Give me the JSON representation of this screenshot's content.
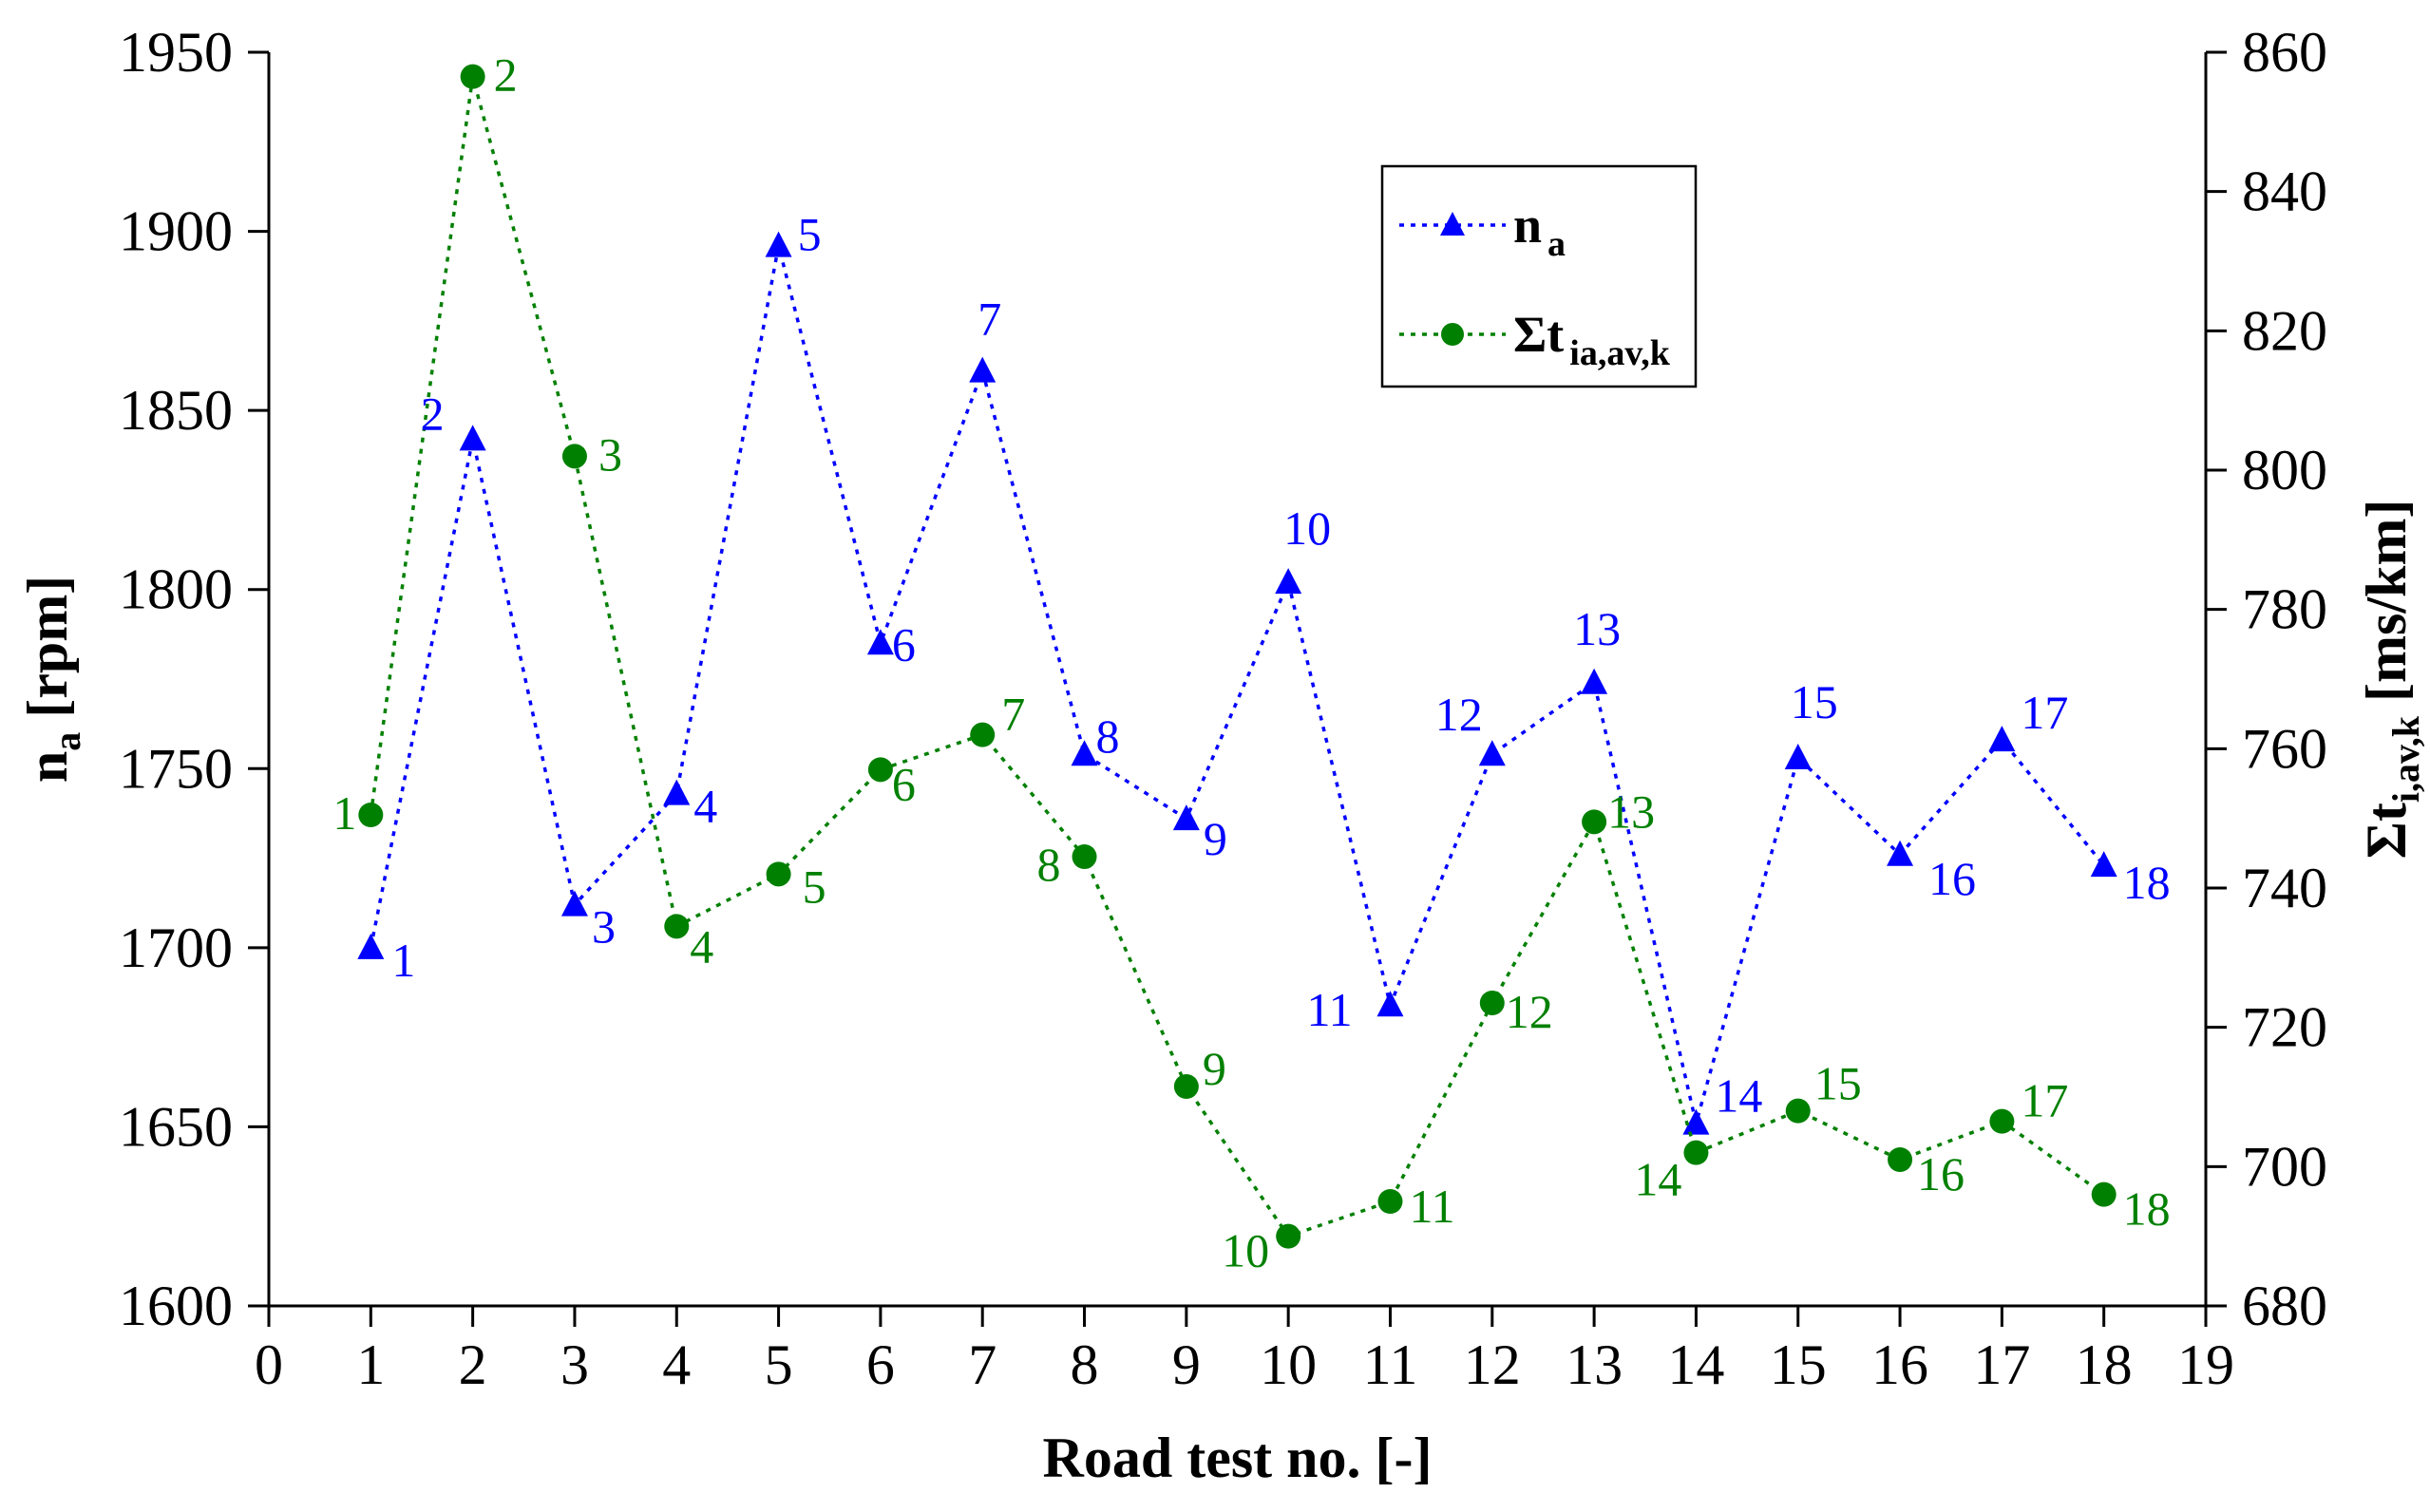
{
  "chart_data": {
    "type": "line",
    "title": "",
    "xlabel": "Road test no. [-]",
    "ylabel_left": {
      "main": "n",
      "sub": "a",
      "unit": " [rpm]"
    },
    "ylabel_right": {
      "main": "Σt",
      "sub": "i,av,k",
      "unit": " [ms/km]"
    },
    "x_ticks": [
      0,
      1,
      2,
      3,
      4,
      5,
      6,
      7,
      8,
      9,
      10,
      11,
      12,
      13,
      14,
      15,
      16,
      17,
      18,
      19
    ],
    "xlim": [
      0,
      19
    ],
    "ylim_left": [
      1600,
      1950
    ],
    "ylim_right": [
      680,
      860
    ],
    "y_ticks_left": [
      1600,
      1650,
      1700,
      1750,
      1800,
      1850,
      1900,
      1950
    ],
    "y_ticks_right": [
      680,
      700,
      720,
      740,
      760,
      780,
      800,
      820,
      840,
      860
    ],
    "x": [
      1,
      2,
      3,
      4,
      5,
      6,
      7,
      8,
      9,
      10,
      11,
      12,
      13,
      14,
      15,
      16,
      17,
      18
    ],
    "series": [
      {
        "name": "n_a",
        "legend_main": "n",
        "legend_sub": "a",
        "axis": "left",
        "color": "#0000ff",
        "marker": "triangle",
        "values": [
          1700,
          1842,
          1712,
          1743,
          1896,
          1785,
          1861,
          1754,
          1736,
          1802,
          1684,
          1754,
          1774,
          1651,
          1753,
          1726,
          1758,
          1723
        ],
        "labels": [
          "1",
          "2",
          "3",
          "4",
          "5",
          "6",
          "7",
          "8",
          "9",
          "10",
          "11",
          "12",
          "13",
          "14",
          "15",
          "16",
          "17",
          "18"
        ]
      },
      {
        "name": "Σt_ia,av,k",
        "legend_main": "Σt",
        "legend_sub": "ia,av,k",
        "axis": "right",
        "color": "#008000",
        "marker": "circle",
        "values": [
          750.5,
          856.5,
          802,
          734.5,
          742,
          757,
          762,
          744.5,
          711.5,
          690,
          695,
          723.5,
          749.5,
          702,
          708,
          701,
          706.5,
          696
        ],
        "labels": [
          "1",
          "2",
          "3",
          "4",
          "5",
          "6",
          "7",
          "8",
          "9",
          "10",
          "11",
          "12",
          "13",
          "14",
          "15",
          "16",
          "17",
          "18"
        ]
      }
    ],
    "legend_position": "top-center-right",
    "grid": false
  }
}
